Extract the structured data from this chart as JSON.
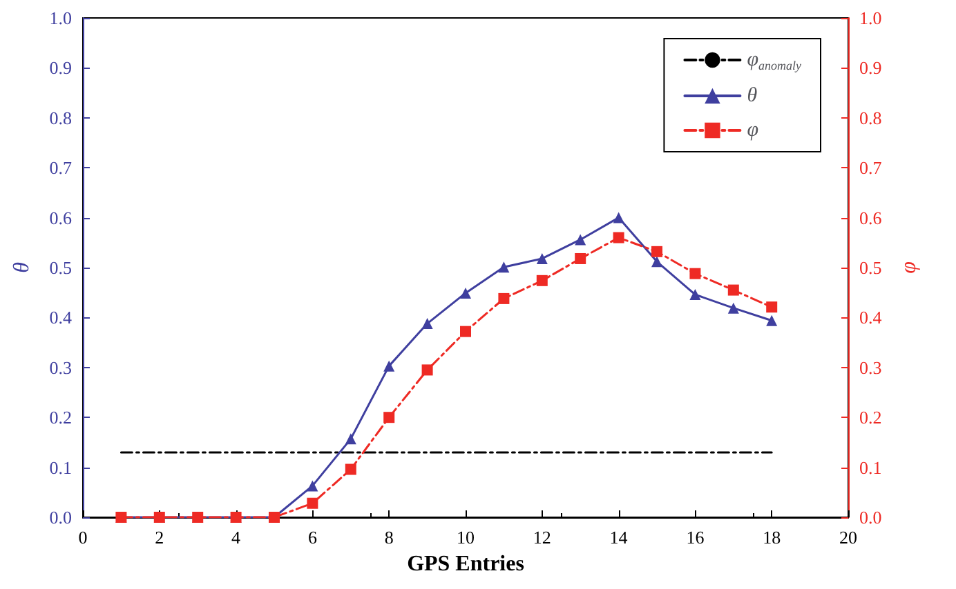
{
  "chart_data": {
    "type": "line",
    "xlabel": "GPS Entries",
    "ylabel": "θ",
    "y2label": "φ",
    "x": [
      1,
      2,
      3,
      4,
      5,
      6,
      7,
      8,
      9,
      10,
      11,
      12,
      13,
      14,
      15,
      16,
      17,
      18
    ],
    "series": [
      {
        "name": "φ$_{anomaly}$",
        "type": "line",
        "color": "#000000",
        "x": [
          1,
          18
        ],
        "values": [
          0.13,
          0.13
        ],
        "marker": "none",
        "line_style": "dashed"
      },
      {
        "name": "θ",
        "color": "#3f3f9f",
        "marker": "triangle",
        "line_style": "solid",
        "values": [
          0,
          0,
          0,
          0,
          0,
          0.063,
          0.157,
          0.303,
          0.388,
          0.449,
          0.501,
          0.518,
          0.556,
          0.6,
          0.512,
          0.446,
          0.419,
          0.394
        ]
      },
      {
        "name": "φ",
        "color": "#ee2a24",
        "marker": "square",
        "line_style": "dashed",
        "values": [
          0,
          0,
          0,
          0,
          0,
          0.028,
          0.096,
          0.2,
          0.295,
          0.372,
          0.438,
          0.474,
          0.518,
          0.56,
          0.532,
          0.488,
          0.455,
          0.421
        ]
      }
    ],
    "xlim": [
      0,
      20
    ],
    "xticks": [
      0,
      2,
      4,
      6,
      8,
      10,
      12,
      14,
      16,
      18,
      20
    ],
    "ylim": [
      0,
      1
    ],
    "yticks": [
      {
        "value": 0,
        "label": "0.0"
      },
      0.1,
      0.2,
      0.3,
      0.4,
      0.5,
      0.6,
      0.7,
      0.8,
      0.9,
      {
        "value": 1,
        "label": "1.0"
      }
    ],
    "y2lim": [
      0,
      1
    ],
    "y2ticks": [
      {
        "value": 0,
        "label": "0.0"
      },
      0.1,
      0.2,
      0.3,
      0.4,
      0.5,
      0.6,
      0.7,
      0.8,
      0.9,
      {
        "value": 1,
        "label": "1.0"
      }
    ],
    "legend": "top right",
    "grid": false
  }
}
